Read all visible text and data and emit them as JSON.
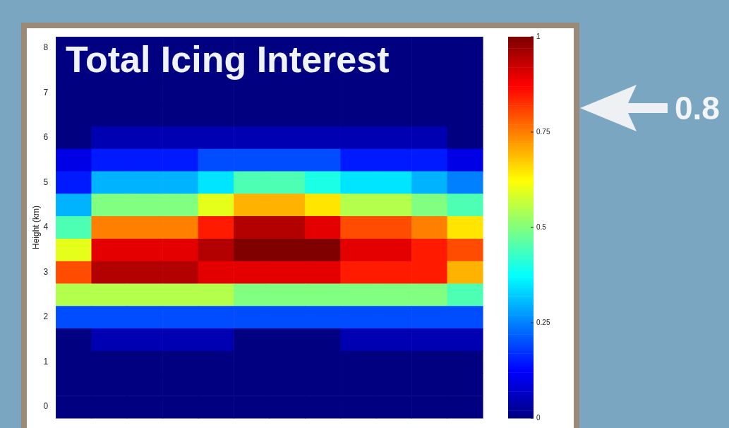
{
  "chart_data": {
    "type": "heatmap",
    "title": "Total Icing Interest",
    "ylabel": "Height (km)",
    "categories": [
      null,
      null,
      null,
      null,
      null,
      null,
      null,
      null,
      null,
      null,
      null,
      null
    ],
    "y_categories": [
      "8",
      null,
      "7",
      null,
      "6",
      null,
      "5",
      null,
      "4",
      null,
      "3",
      null,
      "2",
      null,
      "1",
      null,
      "0"
    ],
    "clim": [
      0,
      1
    ],
    "cticks": [
      0,
      0.25,
      0.5,
      0.75,
      1
    ],
    "annotations": [
      "0.8"
    ],
    "cells": [
      [
        0,
        0,
        0,
        0,
        0,
        0,
        0,
        0,
        0,
        0,
        0,
        0
      ],
      [
        0,
        0,
        0,
        0,
        0,
        0,
        0,
        0,
        0,
        0,
        0,
        0
      ],
      [
        0,
        0,
        0,
        0,
        0,
        0,
        0,
        0,
        0,
        0,
        0,
        0
      ],
      [
        0,
        0,
        0,
        0,
        0,
        0,
        0,
        0,
        0,
        0,
        0,
        0
      ],
      [
        0,
        0.05,
        0.05,
        0.05,
        0.05,
        0.05,
        0.05,
        0.05,
        0.05,
        0.05,
        0.05,
        0
      ],
      [
        0.1,
        0.15,
        0.15,
        0.15,
        0.2,
        0.2,
        0.2,
        0.2,
        0.15,
        0.15,
        0.15,
        0.1
      ],
      [
        0.15,
        0.3,
        0.3,
        0.3,
        0.35,
        0.45,
        0.45,
        0.4,
        0.35,
        0.35,
        0.3,
        0.25
      ],
      [
        0.3,
        0.5,
        0.5,
        0.5,
        0.6,
        0.7,
        0.7,
        0.65,
        0.55,
        0.55,
        0.5,
        0.45
      ],
      [
        0.45,
        0.75,
        0.75,
        0.75,
        0.85,
        0.95,
        0.95,
        0.9,
        0.8,
        0.8,
        0.75,
        0.65
      ],
      [
        0.6,
        0.9,
        0.9,
        0.9,
        0.95,
        1,
        1,
        1,
        0.9,
        0.9,
        0.85,
        0.8
      ],
      [
        0.8,
        0.95,
        0.95,
        0.95,
        0.9,
        0.9,
        0.9,
        0.9,
        0.85,
        0.85,
        0.85,
        0.7
      ],
      [
        0.55,
        0.55,
        0.55,
        0.55,
        0.55,
        0.5,
        0.5,
        0.5,
        0.5,
        0.5,
        0.5,
        0.45
      ],
      [
        0.2,
        0.2,
        0.2,
        0.2,
        0.2,
        0.2,
        0.2,
        0.2,
        0.2,
        0.2,
        0.2,
        0.2
      ],
      [
        0,
        0.05,
        0.05,
        0.05,
        0.05,
        0,
        0,
        0,
        0.05,
        0.05,
        0.05,
        0.05
      ],
      [
        0,
        0,
        0,
        0,
        0,
        0,
        0,
        0,
        0,
        0,
        0,
        0
      ],
      [
        0,
        0,
        0,
        0,
        0,
        0,
        0,
        0,
        0,
        0,
        0,
        0
      ],
      [
        0,
        0,
        0,
        0,
        0,
        0,
        0,
        0,
        0,
        0,
        0,
        0
      ]
    ]
  }
}
